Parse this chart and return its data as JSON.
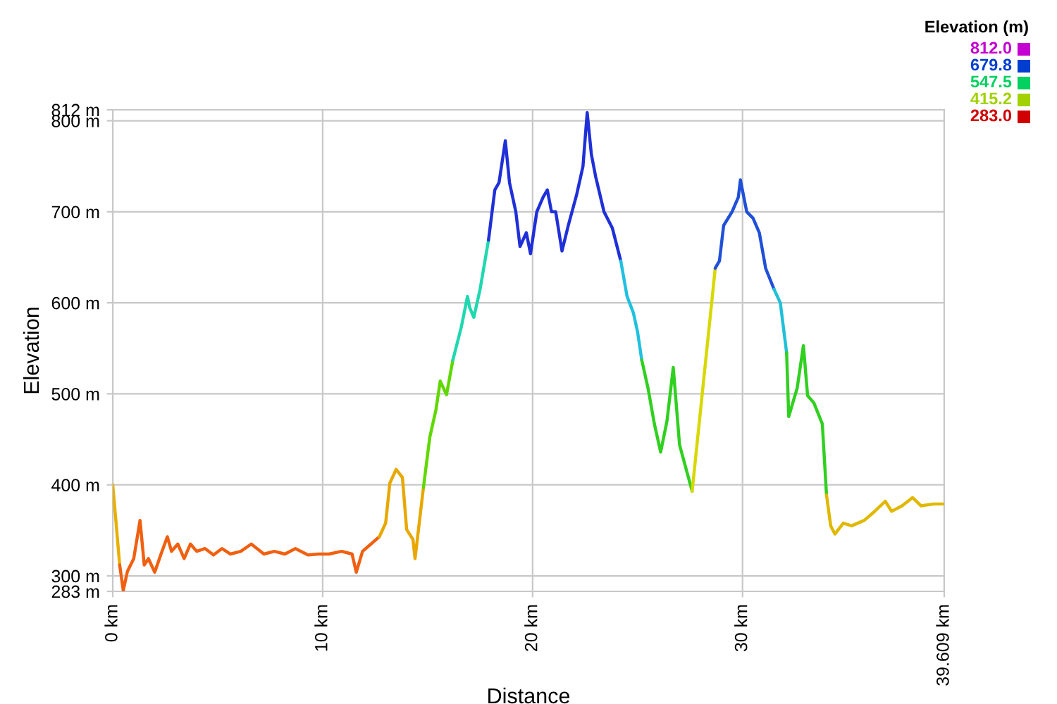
{
  "chart_data": {
    "type": "line",
    "xlabel": "Distance",
    "ylabel": "Elevation",
    "clabel": "Elevation (m)",
    "series": [
      {
        "color": "#e8b000",
        "x": [
          0,
          0.13,
          0.33
        ],
        "values": [
          400,
          366,
          312
        ]
      },
      {
        "color": "#f06010",
        "x": [
          0.33,
          0.5,
          0.7,
          1.0,
          1.3,
          1.5,
          1.7,
          2.0,
          2.3,
          2.6,
          2.8,
          3.1,
          3.4,
          3.7,
          4.0,
          4.4,
          4.8,
          5.2,
          5.6,
          6.1,
          6.6,
          7.2,
          7.7,
          8.2,
          8.7,
          9.3,
          9.8,
          10.3,
          10.9,
          11.4,
          11.6,
          11.9,
          12.3,
          12.7
        ],
        "values": [
          312,
          284,
          305,
          319,
          361,
          312,
          319,
          304,
          324,
          343,
          327,
          335,
          319,
          335,
          327,
          330,
          323,
          330,
          324,
          327,
          335,
          324,
          327,
          324,
          330,
          323,
          324,
          324,
          327,
          324,
          304,
          327,
          335,
          343
        ]
      },
      {
        "color": "#e8a800",
        "x": [
          12.7,
          13.0,
          13.2,
          13.5,
          13.8,
          14.0,
          14.3,
          14.4,
          14.6,
          14.8
        ],
        "values": [
          343,
          358,
          402,
          417,
          408,
          351,
          340,
          319,
          358,
          397
        ]
      },
      {
        "color": "#60d800",
        "x": [
          14.8,
          15.1,
          15.4,
          15.6,
          15.9,
          16.2
        ],
        "values": [
          397,
          452,
          483,
          514,
          499,
          537
        ]
      },
      {
        "color": "#20d8b0",
        "x": [
          16.2,
          16.6,
          16.9,
          17.0,
          17.2,
          17.5,
          17.9
        ],
        "values": [
          537,
          573,
          607,
          595,
          584,
          615,
          669
        ]
      },
      {
        "color": "#2030d8",
        "x": [
          17.9,
          18.2,
          18.4,
          18.7,
          18.9,
          19.2,
          19.4,
          19.7,
          19.9,
          20.2,
          20.5,
          20.7,
          20.9,
          21.1,
          21.4,
          21.7,
          22.1,
          22.4,
          22.6,
          22.8,
          23.0,
          23.4,
          23.8,
          24.2
        ],
        "values": [
          669,
          724,
          732,
          778,
          732,
          700,
          662,
          677,
          654,
          700,
          716,
          724,
          700,
          700,
          657,
          685,
          719,
          750,
          809,
          763,
          739,
          700,
          682,
          646
        ]
      },
      {
        "color": "#20c0e0",
        "x": [
          24.2,
          24.5,
          24.8,
          25.0,
          25.2
        ],
        "values": [
          646,
          607,
          589,
          568,
          537
        ]
      },
      {
        "color": "#30d020",
        "x": [
          25.2,
          25.5,
          25.8,
          26.1,
          26.4,
          26.7,
          27.0,
          27.6
        ],
        "values": [
          537,
          506,
          467,
          436,
          470,
          529,
          444,
          393
        ]
      },
      {
        "color": "#d8d800",
        "x": [
          27.6,
          28.7
        ],
        "values": [
          393,
          638
        ]
      },
      {
        "color": "#2050d8",
        "x": [
          28.7,
          28.9,
          29.1,
          29.5,
          29.8,
          29.9,
          30.2,
          30.5,
          30.8,
          31.1,
          31.5
        ],
        "values": [
          638,
          646,
          685,
          700,
          716,
          735,
          700,
          693,
          677,
          638,
          615
        ]
      },
      {
        "color": "#20c0d8",
        "x": [
          31.5,
          31.8,
          32.1
        ],
        "values": [
          615,
          600,
          545
        ]
      },
      {
        "color": "#30d020",
        "x": [
          32.1,
          32.2,
          32.6,
          32.9,
          33.1,
          33.4,
          33.8,
          34.0
        ],
        "values": [
          545,
          475,
          506,
          553,
          498,
          490,
          467,
          389
        ]
      },
      {
        "color": "#e0b800",
        "x": [
          34.0,
          34.2,
          34.4,
          34.8,
          35.2,
          35.8,
          36.3,
          36.8,
          37.1,
          37.6,
          38.1,
          38.5,
          39.1,
          39.6
        ],
        "values": [
          389,
          355,
          346,
          358,
          355,
          361,
          371,
          382,
          371,
          377,
          386,
          377,
          379,
          379
        ]
      }
    ],
    "xlim": [
      0,
      39.609
    ],
    "xticks": [
      {
        "value": 0,
        "label": "0 km"
      },
      {
        "value": 10,
        "label": "10 km"
      },
      {
        "value": 20,
        "label": "20 km"
      },
      {
        "value": 30,
        "label": "30 km"
      },
      {
        "value": 39.609,
        "label": "39.609 km"
      }
    ],
    "ylim": [
      283,
      812
    ],
    "yticks": [
      {
        "value": 283,
        "label": "283 m"
      },
      {
        "value": 300,
        "label": "300 m"
      },
      {
        "value": 400,
        "label": "400 m"
      },
      {
        "value": 500,
        "label": "500 m"
      },
      {
        "value": 600,
        "label": "600 m"
      },
      {
        "value": 700,
        "label": "700 m"
      },
      {
        "value": 800,
        "label": "800 m"
      },
      {
        "value": 812,
        "label": "812 m"
      }
    ],
    "clim": [
      283,
      812
    ],
    "cticks": [
      {
        "value": 812,
        "label": "812.0"
      },
      {
        "value": 679.8,
        "label": "679.8"
      },
      {
        "value": 547.5,
        "label": "547.5"
      },
      {
        "value": 415.2,
        "label": "415.2"
      },
      {
        "value": 283,
        "label": "283.0"
      }
    ],
    "grid": true
  }
}
